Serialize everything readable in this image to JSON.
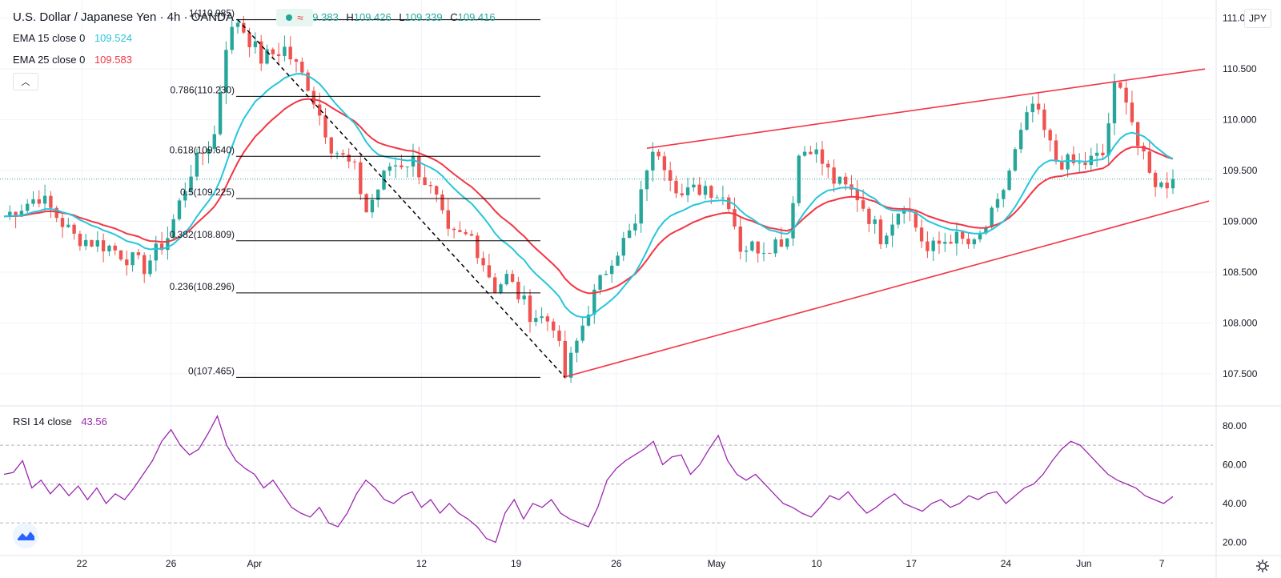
{
  "header": {
    "symbol": "U.S. Dollar / Japanese Yen · 4h · OANDA",
    "ohlc": [
      {
        "key": "O",
        "value": "109.383"
      },
      {
        "key": "H",
        "value": "109.426"
      },
      {
        "key": "L",
        "value": "109.339"
      },
      {
        "key": "C",
        "value": "109.416"
      }
    ],
    "indicators": [
      {
        "label": "EMA 15 close 0",
        "value": "109.524",
        "color": "#26c6da"
      },
      {
        "label": "EMA 25 close 0",
        "value": "109.583",
        "color": "#f23645"
      }
    ],
    "currency_button": "JPY"
  },
  "rsi_legend": {
    "label": "RSI 14 close",
    "value": "43.56",
    "color": "#9c27b0"
  },
  "colors": {
    "up": "#26a69a",
    "down": "#ef5350",
    "ema15": "#26c6da",
    "ema25": "#f23645",
    "fib": "#000000",
    "wedge": "#f23645",
    "rsi": "#9c27b0",
    "grid": "#f0f3fa"
  },
  "chart_data": [
    {
      "type": "candlestick",
      "title": "U.S. Dollar / Japanese Yen · 4h · OANDA",
      "y_ticks": [
        "107.500",
        "108.000",
        "108.500",
        "109.000",
        "109.500",
        "110.000",
        "110.500",
        "111.000"
      ],
      "ylim": [
        107.2,
        111.1
      ],
      "x_ticks": [
        "22",
        "26",
        "Apr",
        "12",
        "19",
        "26",
        "May",
        "10",
        "17",
        "24",
        "Jun",
        "7"
      ],
      "price_path": [
        [
          0,
          109.05
        ],
        [
          6,
          109.25
        ],
        [
          12,
          108.85
        ],
        [
          18,
          108.75
        ],
        [
          24,
          108.55
        ],
        [
          28,
          108.85
        ],
        [
          32,
          109.5
        ],
        [
          36,
          109.85
        ],
        [
          38,
          110.75
        ],
        [
          40,
          110.98
        ],
        [
          44,
          110.6
        ],
        [
          48,
          110.7
        ],
        [
          52,
          110.35
        ],
        [
          56,
          109.75
        ],
        [
          60,
          109.5
        ],
        [
          62,
          109.1
        ],
        [
          66,
          109.55
        ],
        [
          70,
          109.6
        ],
        [
          74,
          109.2
        ],
        [
          76,
          108.85
        ],
        [
          80,
          108.85
        ],
        [
          84,
          108.35
        ],
        [
          86,
          108.45
        ],
        [
          90,
          108.1
        ],
        [
          94,
          108.0
        ],
        [
          96,
          107.47
        ],
        [
          100,
          108.15
        ],
        [
          104,
          108.65
        ],
        [
          108,
          108.95
        ],
        [
          110,
          109.55
        ],
        [
          112,
          109.7
        ],
        [
          116,
          109.25
        ],
        [
          120,
          109.35
        ],
        [
          124,
          109.2
        ],
        [
          126,
          108.75
        ],
        [
          130,
          108.75
        ],
        [
          134,
          108.85
        ],
        [
          136,
          109.65
        ],
        [
          138,
          109.75
        ],
        [
          142,
          109.4
        ],
        [
          146,
          109.25
        ],
        [
          150,
          108.85
        ],
        [
          154,
          109.2
        ],
        [
          158,
          108.7
        ],
        [
          162,
          108.85
        ],
        [
          166,
          108.75
        ],
        [
          170,
          109.15
        ],
        [
          174,
          109.85
        ],
        [
          176,
          110.15
        ],
        [
          180,
          109.6
        ],
        [
          184,
          109.55
        ],
        [
          188,
          109.65
        ],
        [
          190,
          110.3
        ],
        [
          192,
          110.25
        ],
        [
          194,
          109.75
        ],
        [
          196,
          109.45
        ],
        [
          198,
          109.35
        ],
        [
          200,
          109.42
        ]
      ],
      "ema15_last": 109.524,
      "ema25_last": 109.583,
      "fibonacci": [
        {
          "label": "1(110.985)",
          "value": 110.985
        },
        {
          "label": "0.786(110.230)",
          "value": 110.23
        },
        {
          "label": "0.618(109.640)",
          "value": 109.64
        },
        {
          "label": "0.5(109.225)",
          "value": 109.225
        },
        {
          "label": "0.382(108.809)",
          "value": 108.809
        },
        {
          "label": "0.236(108.296)",
          "value": 108.296
        },
        {
          "label": "0(107.465)",
          "value": 107.465
        }
      ],
      "wedge": {
        "upper": [
          [
            110,
            109.72
          ],
          [
            200,
            110.5
          ]
        ],
        "lower": [
          [
            96,
            107.47
          ],
          [
            200,
            109.2
          ]
        ]
      },
      "fib_diagonal": [
        [
          40,
          110.985
        ],
        [
          96,
          107.465
        ]
      ],
      "last_price": 109.416
    },
    {
      "type": "line",
      "title": "RSI 14 close",
      "y_ticks": [
        "20.00",
        "40.00",
        "60.00",
        "80.00"
      ],
      "ylim": [
        14,
        89
      ],
      "bands": [
        30,
        50,
        70
      ],
      "series": [
        {
          "name": "RSI 14 close",
          "values": [
            55,
            56,
            62,
            48,
            52,
            45,
            50,
            44,
            49,
            42,
            48,
            40,
            45,
            42,
            48,
            55,
            62,
            72,
            78,
            70,
            65,
            68,
            76,
            85,
            70,
            62,
            58,
            55,
            48,
            52,
            45,
            38,
            35,
            33,
            38,
            30,
            28,
            35,
            45,
            52,
            48,
            42,
            40,
            44,
            46,
            38,
            42,
            35,
            40,
            35,
            32,
            28,
            22,
            20,
            35,
            42,
            32,
            40,
            38,
            42,
            35,
            32,
            30,
            28,
            38,
            52,
            58,
            62,
            65,
            68,
            72,
            60,
            64,
            65,
            55,
            60,
            68,
            75,
            62,
            55,
            52,
            55,
            50,
            45,
            40,
            38,
            35,
            33,
            38,
            44,
            42,
            46,
            40,
            35,
            38,
            42,
            45,
            40,
            38,
            36,
            40,
            42,
            38,
            40,
            44,
            42,
            45,
            46,
            40,
            44,
            48,
            50,
            55,
            62,
            68,
            72,
            70,
            65,
            60,
            55,
            52,
            50,
            48,
            44,
            42,
            40,
            43.56
          ]
        }
      ]
    }
  ]
}
